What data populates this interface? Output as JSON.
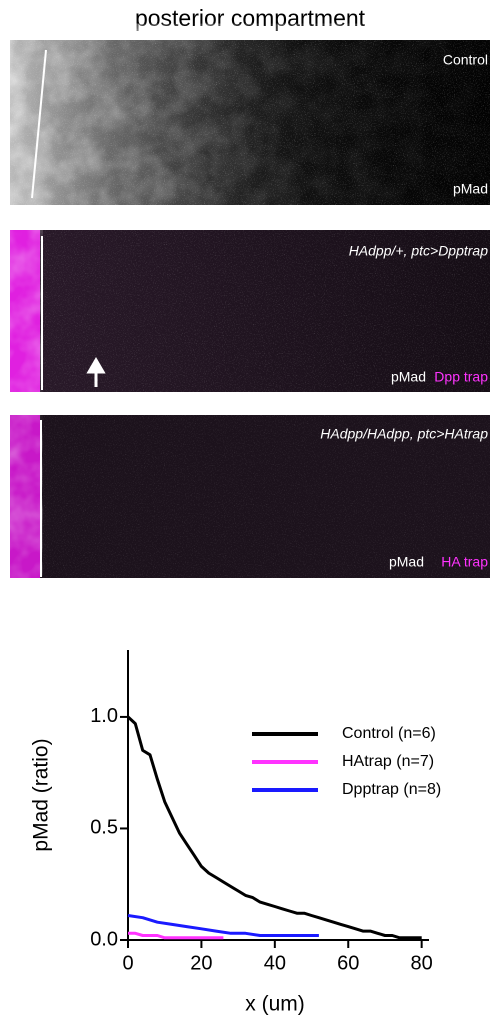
{
  "title": "posterior compartment",
  "panels": [
    {
      "label": "Control",
      "stain": "pMad"
    },
    {
      "label": "HAdpp/+, ptc>Dpptrap",
      "stain": "pMad",
      "trap": "Dpp trap"
    },
    {
      "label": "HAdpp/HAdpp, ptc>HAtrap",
      "stain": "pMad",
      "trap": "HA trap"
    }
  ],
  "chart_data": {
    "type": "line",
    "ylabel": "pMad (ratio)",
    "xlabel": "x (um)",
    "xlim": [
      0,
      82
    ],
    "ylim": [
      0,
      1.3
    ],
    "xticks": [
      0,
      20,
      40,
      60,
      80
    ],
    "yticks": [
      {
        "value": 0,
        "label": "0.0"
      },
      {
        "value": 0.5,
        "label": "0.5"
      },
      {
        "value": 1,
        "label": "1.0"
      }
    ],
    "series": [
      {
        "name": "Control (n=6)",
        "color": "#000000",
        "x": [
          0,
          2,
          4,
          6,
          8,
          10,
          12,
          14,
          16,
          18,
          20,
          22,
          24,
          26,
          28,
          30,
          32,
          34,
          36,
          38,
          40,
          42,
          44,
          46,
          48,
          50,
          52,
          54,
          56,
          58,
          60,
          62,
          64,
          66,
          68,
          70,
          72,
          74,
          76,
          78,
          80
        ],
        "values": [
          1.0,
          0.97,
          0.85,
          0.83,
          0.72,
          0.62,
          0.55,
          0.48,
          0.43,
          0.38,
          0.33,
          0.3,
          0.28,
          0.26,
          0.24,
          0.22,
          0.2,
          0.19,
          0.17,
          0.16,
          0.15,
          0.14,
          0.13,
          0.12,
          0.12,
          0.11,
          0.1,
          0.09,
          0.08,
          0.07,
          0.06,
          0.05,
          0.04,
          0.04,
          0.03,
          0.02,
          0.02,
          0.01,
          0.01,
          0.01,
          0.01
        ]
      },
      {
        "name": "HAtrap (n=7)",
        "color": "#ff33ff",
        "x": [
          0,
          2,
          4,
          6,
          8,
          10,
          12,
          14,
          16,
          18,
          20,
          22,
          24,
          26
        ],
        "values": [
          0.03,
          0.03,
          0.02,
          0.02,
          0.02,
          0.01,
          0.01,
          0.01,
          0.01,
          0.01,
          0.01,
          0.01,
          0.01,
          0.01
        ]
      },
      {
        "name": "Dpptrap (n=8)",
        "color": "#1a1aff",
        "x": [
          0,
          4,
          8,
          12,
          16,
          20,
          24,
          28,
          32,
          36,
          40,
          44,
          48,
          52
        ],
        "values": [
          0.11,
          0.1,
          0.08,
          0.07,
          0.06,
          0.05,
          0.04,
          0.03,
          0.03,
          0.02,
          0.02,
          0.02,
          0.02,
          0.02
        ]
      }
    ],
    "legend": "upper right"
  }
}
